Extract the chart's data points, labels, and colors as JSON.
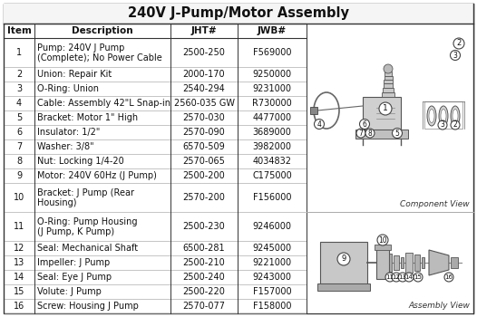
{
  "title": "240V J-Pump/Motor Assembly",
  "headers": [
    "Item",
    "Description",
    "JHT#",
    "JWB#"
  ],
  "rows": [
    [
      "1",
      "Pump: 240V J Pump\n(Complete); No Power Cable",
      "2500-250",
      "F569000"
    ],
    [
      "2",
      "Union: Repair Kit",
      "2000-170",
      "9250000"
    ],
    [
      "3",
      "O-Ring: Union",
      "2540-294",
      "9231000"
    ],
    [
      "4",
      "Cable: Assembly 42\"L Snap-in",
      "2560-035 GW",
      "R730000"
    ],
    [
      "5",
      "Bracket: Motor 1\" High",
      "2570-030",
      "4477000"
    ],
    [
      "6",
      "Insulator: 1/2\"",
      "2570-090",
      "3689000"
    ],
    [
      "7",
      "Washer: 3/8\"",
      "6570-509",
      "3982000"
    ],
    [
      "8",
      "Nut: Locking 1/4-20",
      "2570-065",
      "4034832"
    ],
    [
      "9",
      "Motor: 240V 60Hz (J Pump)",
      "2500-200",
      "C175000"
    ],
    [
      "10",
      "Bracket: J Pump (Rear\nHousing)",
      "2570-200",
      "F156000"
    ],
    [
      "11",
      "O-Ring: Pump Housing\n(J Pump, K Pump)",
      "2500-230",
      "9246000"
    ],
    [
      "12",
      "Seal: Mechanical Shaft",
      "6500-281",
      "9245000"
    ],
    [
      "13",
      "Impeller: J Pump",
      "2500-210",
      "9221000"
    ],
    [
      "14",
      "Seal: Eye J Pump",
      "2500-240",
      "9243000"
    ],
    [
      "15",
      "Volute: J Pump",
      "2500-220",
      "F157000"
    ],
    [
      "16",
      "Screw: Housing J Pump",
      "2570-077",
      "F158000"
    ]
  ],
  "component_label": "Component View",
  "assembly_label": "Assembly View",
  "fig_bg": "#ffffff",
  "border_color": "#555555",
  "text_color": "#111111",
  "title_fontsize": 10.5,
  "header_fontsize": 7.5,
  "cell_fontsize": 7.0
}
